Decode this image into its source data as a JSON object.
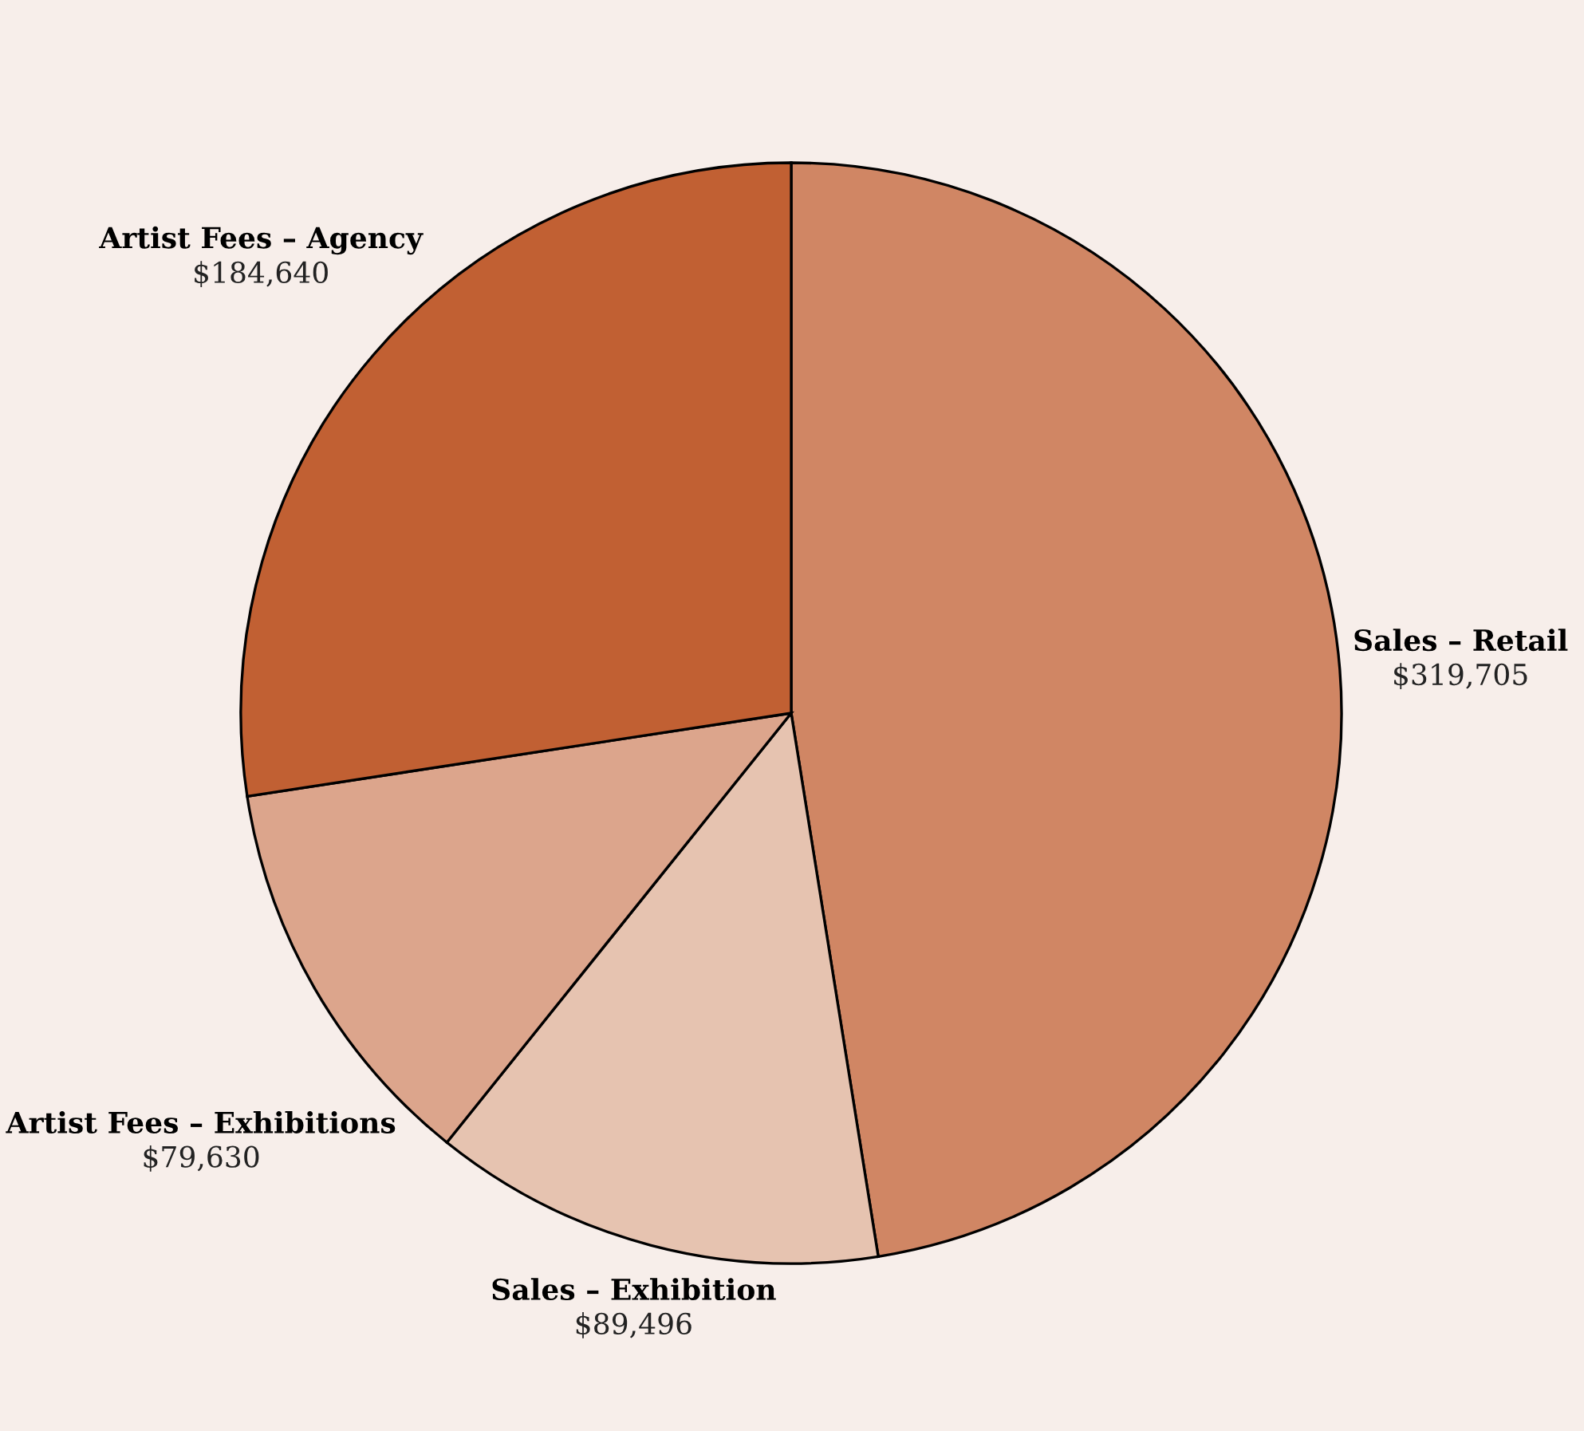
{
  "chart_data": {
    "type": "pie",
    "categories": [
      "Sales – Retail",
      "Sales – Exhibition",
      "Artist Fees – Exhibitions",
      "Artist Fees – Agency"
    ],
    "values": [
      319705,
      89496,
      79630,
      184640
    ],
    "value_labels": [
      "$319,705",
      "$89,496",
      "$79,630",
      "$184,640"
    ],
    "colors": [
      "#d08664",
      "#e6c3b0",
      "#dca58c",
      "#c16033"
    ],
    "legend": false
  }
}
